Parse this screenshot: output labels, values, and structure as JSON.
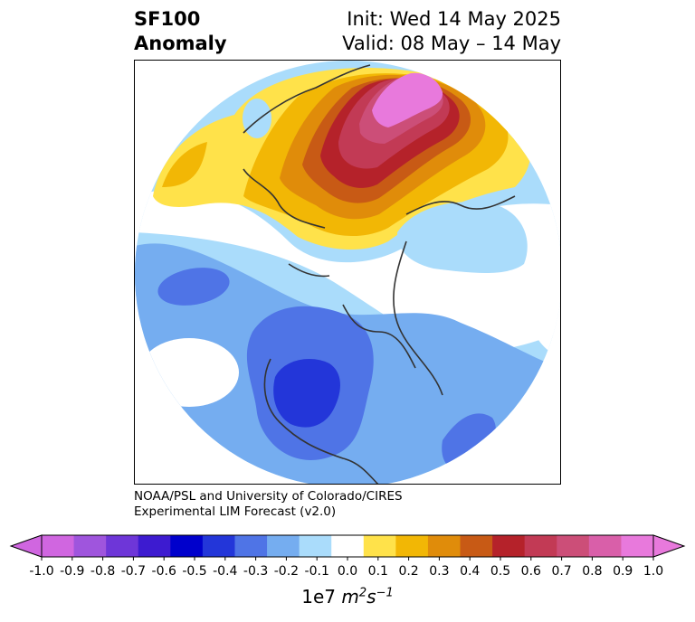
{
  "header": {
    "title_line1": "SF100",
    "title_line2": "Anomaly",
    "init_label": "Init: Wed 14 May 2025",
    "valid_label": "Valid: 08 May – 14 May"
  },
  "credit": {
    "line1": "NOAA/PSL and University of Colorado/CIRES",
    "line2": "Experimental LIM Forecast (v2.0)"
  },
  "colorbar": {
    "unit_prefix": "1e7",
    "unit_m": "m",
    "unit_m_exp": "2",
    "unit_s": "s",
    "unit_s_exp": "−1",
    "ticks": [
      "-1.0",
      "-0.9",
      "-0.8",
      "-0.7",
      "-0.6",
      "-0.5",
      "-0.4",
      "-0.3",
      "-0.2",
      "-0.1",
      "0.0",
      "0.1",
      "0.2",
      "0.3",
      "0.4",
      "0.5",
      "0.6",
      "0.7",
      "0.8",
      "0.9",
      "1.0"
    ],
    "colors": [
      "#d066e0",
      "#9f55dd",
      "#6e36d8",
      "#3d1bd0",
      "#0000cc",
      "#2336d9",
      "#4f74e6",
      "#75adf0",
      "#aadcfb",
      "#ffffff",
      "#ffe24a",
      "#f2b705",
      "#e08c0a",
      "#c85a15",
      "#b5222a",
      "#c23a55",
      "#cc4e78",
      "#d95fa9",
      "#e879dc"
    ],
    "under_color": "#d066e0",
    "over_color": "#e879dc"
  },
  "map": {
    "projection": "north polar stereographic",
    "colors": {
      "neg_light": "#aadcfb",
      "neg_mid": "#75adf0",
      "neg_strong": "#4f74e6",
      "neg_stronger": "#2336d9",
      "pos_1": "#ffe24a",
      "pos_2": "#f2b705",
      "pos_3": "#e08c0a",
      "pos_4": "#c85a15",
      "pos_5": "#b5222a",
      "pos_6": "#c23a55",
      "pos_7": "#cc4e78",
      "pos_8": "#e879dc",
      "coast": "#333333"
    }
  }
}
